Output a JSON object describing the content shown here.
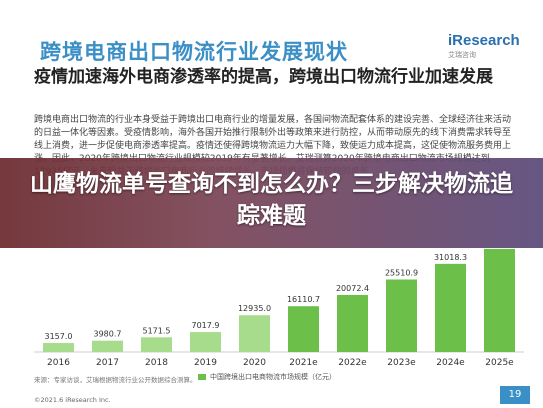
{
  "header": {
    "title": "跨境电商出口物流行业发展现状",
    "logo": "iResearch",
    "logo_sub": "艾瑞咨询",
    "subtitle": "疫情加速海外电商渗透率的提高，跨境出口物流行业加速发展"
  },
  "body_text": "跨境电商出口物流的行业本身受益于跨境出口电商行业的增量发展，各国间物流配套体系的建设完善、全球经济往来活动的日益一体化等因素。受疫情影响，海外各国开始推行限制外出等政策来进行防控，从而带动原先的线下消费需求转导至线上消费，进一步促使电商渗透率提高。疫情还使得跨境物流运力大幅下降，致使运力成本提高，这促使物流服务费用上涨。因此，2020年跨境出口物流行业规模较2019年有显著增长。艾瑞测算2020年跨境电商出口物流市场规模达到12935亿元，未来受益于跨境出口电商行业的持续增长，市场规模将保持较快的增长",
  "banner": {
    "text": "山鹰物流单号查询不到怎么办？三步解决物流追踪难题"
  },
  "chart_data": {
    "type": "bar",
    "categories": [
      "2016",
      "2017",
      "2018",
      "2019",
      "2020",
      "2021e",
      "2022e",
      "2023e",
      "2024e",
      "2025e"
    ],
    "values": [
      3157.0,
      3980.7,
      5171.5,
      7017.9,
      12935.0,
      16110.7,
      20072.4,
      25510.9,
      31018.3,
      36279.9
    ],
    "value_labels": [
      "3157.0",
      "3980.7",
      "5171.5",
      "7017.9",
      "12935.0",
      "16110.7",
      "20072.4",
      "25510.9",
      "31018.3",
      ""
    ],
    "series": [
      {
        "name": "中国跨境出口电商物流市场规模（亿元）",
        "values": [
          3157.0,
          3980.7,
          5171.5,
          7017.9,
          12935.0,
          16110.7,
          20072.4,
          25510.9,
          31018.3,
          36279.9
        ]
      }
    ],
    "colors": {
      "past": "#a7dc8c",
      "estimate": "#6cc04a",
      "axis": "#cccccc"
    },
    "ylim": [
      0,
      38000
    ],
    "grid": false,
    "legend": "bottom"
  },
  "footer": {
    "source": "来源：专家访谈，艾瑞根据物流行业公开数据综合测算。",
    "copyright": "©2021.6 iResearch Inc.",
    "page": "19"
  }
}
